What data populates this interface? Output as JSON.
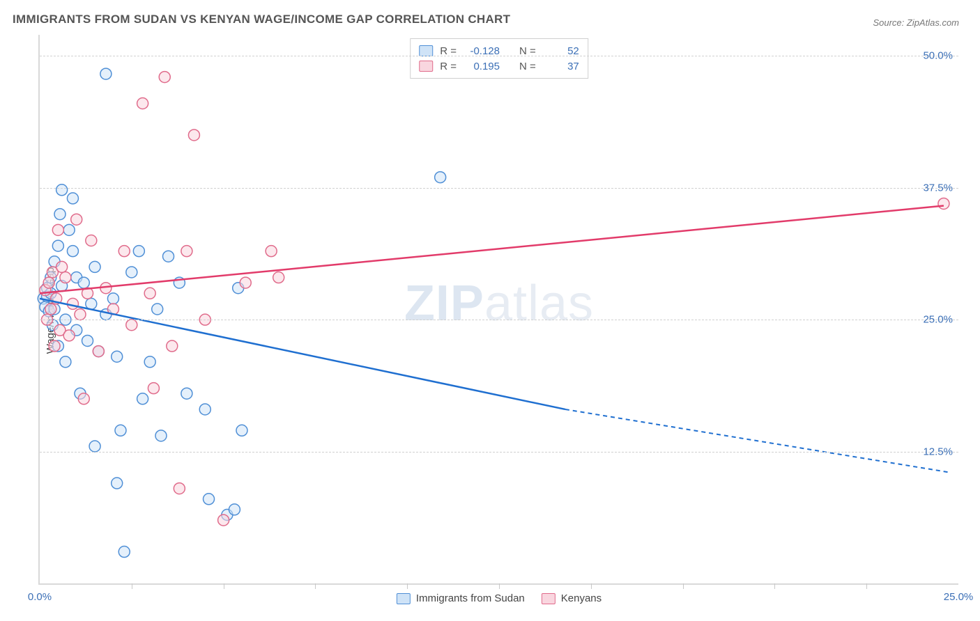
{
  "title": "IMMIGRANTS FROM SUDAN VS KENYAN WAGE/INCOME GAP CORRELATION CHART",
  "source": "Source: ZipAtlas.com",
  "ylabel": "Wage/Income Gap",
  "watermark_bold": "ZIP",
  "watermark_rest": "atlas",
  "chart": {
    "type": "scatter",
    "x_range": [
      0,
      25
    ],
    "y_range": [
      0,
      52
    ],
    "y_ticks": [
      12.5,
      25.0,
      37.5,
      50.0
    ],
    "y_tick_labels": [
      "12.5%",
      "25.0%",
      "37.5%",
      "50.0%"
    ],
    "x_first_label": "0.0%",
    "x_last_label": "25.0%",
    "x_minor_ticks_pct": [
      2.5,
      5,
      7.5,
      10,
      12.5,
      15,
      17.5,
      20,
      22.5
    ],
    "background": "#ffffff",
    "grid_color": "#d0d0d0",
    "axis_color": "#d9d9d9",
    "tick_label_color": "#3b6fb6",
    "series": {
      "sudan": {
        "label": "Immigrants from Sudan",
        "fill": "#cfe3f7",
        "stroke": "#4f8fd6",
        "fill_opacity": 0.55,
        "R": "-0.128",
        "N": "52",
        "trend": {
          "x1": 0,
          "y1": 27.0,
          "x2_solid": 14.3,
          "y2_solid": 16.5,
          "x2": 24.8,
          "y2": 10.5,
          "color": "#1f6fd0"
        },
        "points": [
          [
            0.1,
            27.0
          ],
          [
            0.15,
            26.2
          ],
          [
            0.2,
            28.0
          ],
          [
            0.2,
            27.2
          ],
          [
            0.25,
            25.8
          ],
          [
            0.3,
            27.5
          ],
          [
            0.3,
            29.0
          ],
          [
            0.35,
            24.5
          ],
          [
            0.4,
            26.0
          ],
          [
            0.4,
            30.5
          ],
          [
            0.5,
            32.0
          ],
          [
            0.5,
            22.5
          ],
          [
            0.55,
            35.0
          ],
          [
            0.6,
            37.3
          ],
          [
            0.6,
            28.2
          ],
          [
            0.7,
            25.0
          ],
          [
            0.7,
            21.0
          ],
          [
            0.8,
            33.5
          ],
          [
            0.9,
            31.5
          ],
          [
            0.9,
            36.5
          ],
          [
            1.0,
            29.0
          ],
          [
            1.0,
            24.0
          ],
          [
            1.1,
            18.0
          ],
          [
            1.2,
            28.5
          ],
          [
            1.3,
            23.0
          ],
          [
            1.4,
            26.5
          ],
          [
            1.5,
            30.0
          ],
          [
            1.5,
            13.0
          ],
          [
            1.6,
            22.0
          ],
          [
            1.8,
            48.3
          ],
          [
            1.8,
            25.5
          ],
          [
            2.0,
            27.0
          ],
          [
            2.1,
            9.5
          ],
          [
            2.1,
            21.5
          ],
          [
            2.2,
            14.5
          ],
          [
            2.3,
            3.0
          ],
          [
            2.5,
            29.5
          ],
          [
            2.7,
            31.5
          ],
          [
            2.8,
            17.5
          ],
          [
            3.0,
            21.0
          ],
          [
            3.2,
            26.0
          ],
          [
            3.3,
            14.0
          ],
          [
            3.5,
            31.0
          ],
          [
            3.8,
            28.5
          ],
          [
            4.0,
            18.0
          ],
          [
            4.5,
            16.5
          ],
          [
            4.6,
            8.0
          ],
          [
            5.1,
            6.5
          ],
          [
            5.3,
            7.0
          ],
          [
            5.4,
            28.0
          ],
          [
            5.5,
            14.5
          ],
          [
            10.9,
            38.5
          ]
        ]
      },
      "kenyans": {
        "label": "Kenyans",
        "fill": "#f9d6df",
        "stroke": "#e06b8b",
        "fill_opacity": 0.55,
        "R": "0.195",
        "N": "37",
        "trend": {
          "x1": 0,
          "y1": 27.5,
          "x2_solid": 24.6,
          "y2_solid": 35.8,
          "x2": 24.6,
          "y2": 35.8,
          "color": "#e23b6a"
        },
        "points": [
          [
            0.15,
            27.8
          ],
          [
            0.2,
            25.0
          ],
          [
            0.25,
            28.5
          ],
          [
            0.3,
            26.0
          ],
          [
            0.35,
            29.5
          ],
          [
            0.4,
            22.5
          ],
          [
            0.45,
            27.0
          ],
          [
            0.5,
            33.5
          ],
          [
            0.55,
            24.0
          ],
          [
            0.6,
            30.0
          ],
          [
            0.7,
            29.0
          ],
          [
            0.8,
            23.5
          ],
          [
            0.9,
            26.5
          ],
          [
            1.0,
            34.5
          ],
          [
            1.1,
            25.5
          ],
          [
            1.2,
            17.5
          ],
          [
            1.3,
            27.5
          ],
          [
            1.4,
            32.5
          ],
          [
            1.6,
            22.0
          ],
          [
            1.8,
            28.0
          ],
          [
            2.0,
            26.0
          ],
          [
            2.3,
            31.5
          ],
          [
            2.5,
            24.5
          ],
          [
            2.8,
            45.5
          ],
          [
            3.0,
            27.5
          ],
          [
            3.1,
            18.5
          ],
          [
            3.4,
            48.0
          ],
          [
            3.6,
            22.5
          ],
          [
            3.8,
            9.0
          ],
          [
            4.0,
            31.5
          ],
          [
            4.2,
            42.5
          ],
          [
            4.5,
            25.0
          ],
          [
            5.0,
            6.0
          ],
          [
            5.6,
            28.5
          ],
          [
            6.3,
            31.5
          ],
          [
            6.5,
            29.0
          ],
          [
            24.6,
            36.0
          ]
        ]
      }
    },
    "marker_radius": 8,
    "marker_stroke_width": 1.5,
    "trend_width": 2.5
  },
  "legend_top": {
    "R_label": "R =",
    "N_label": "N ="
  }
}
